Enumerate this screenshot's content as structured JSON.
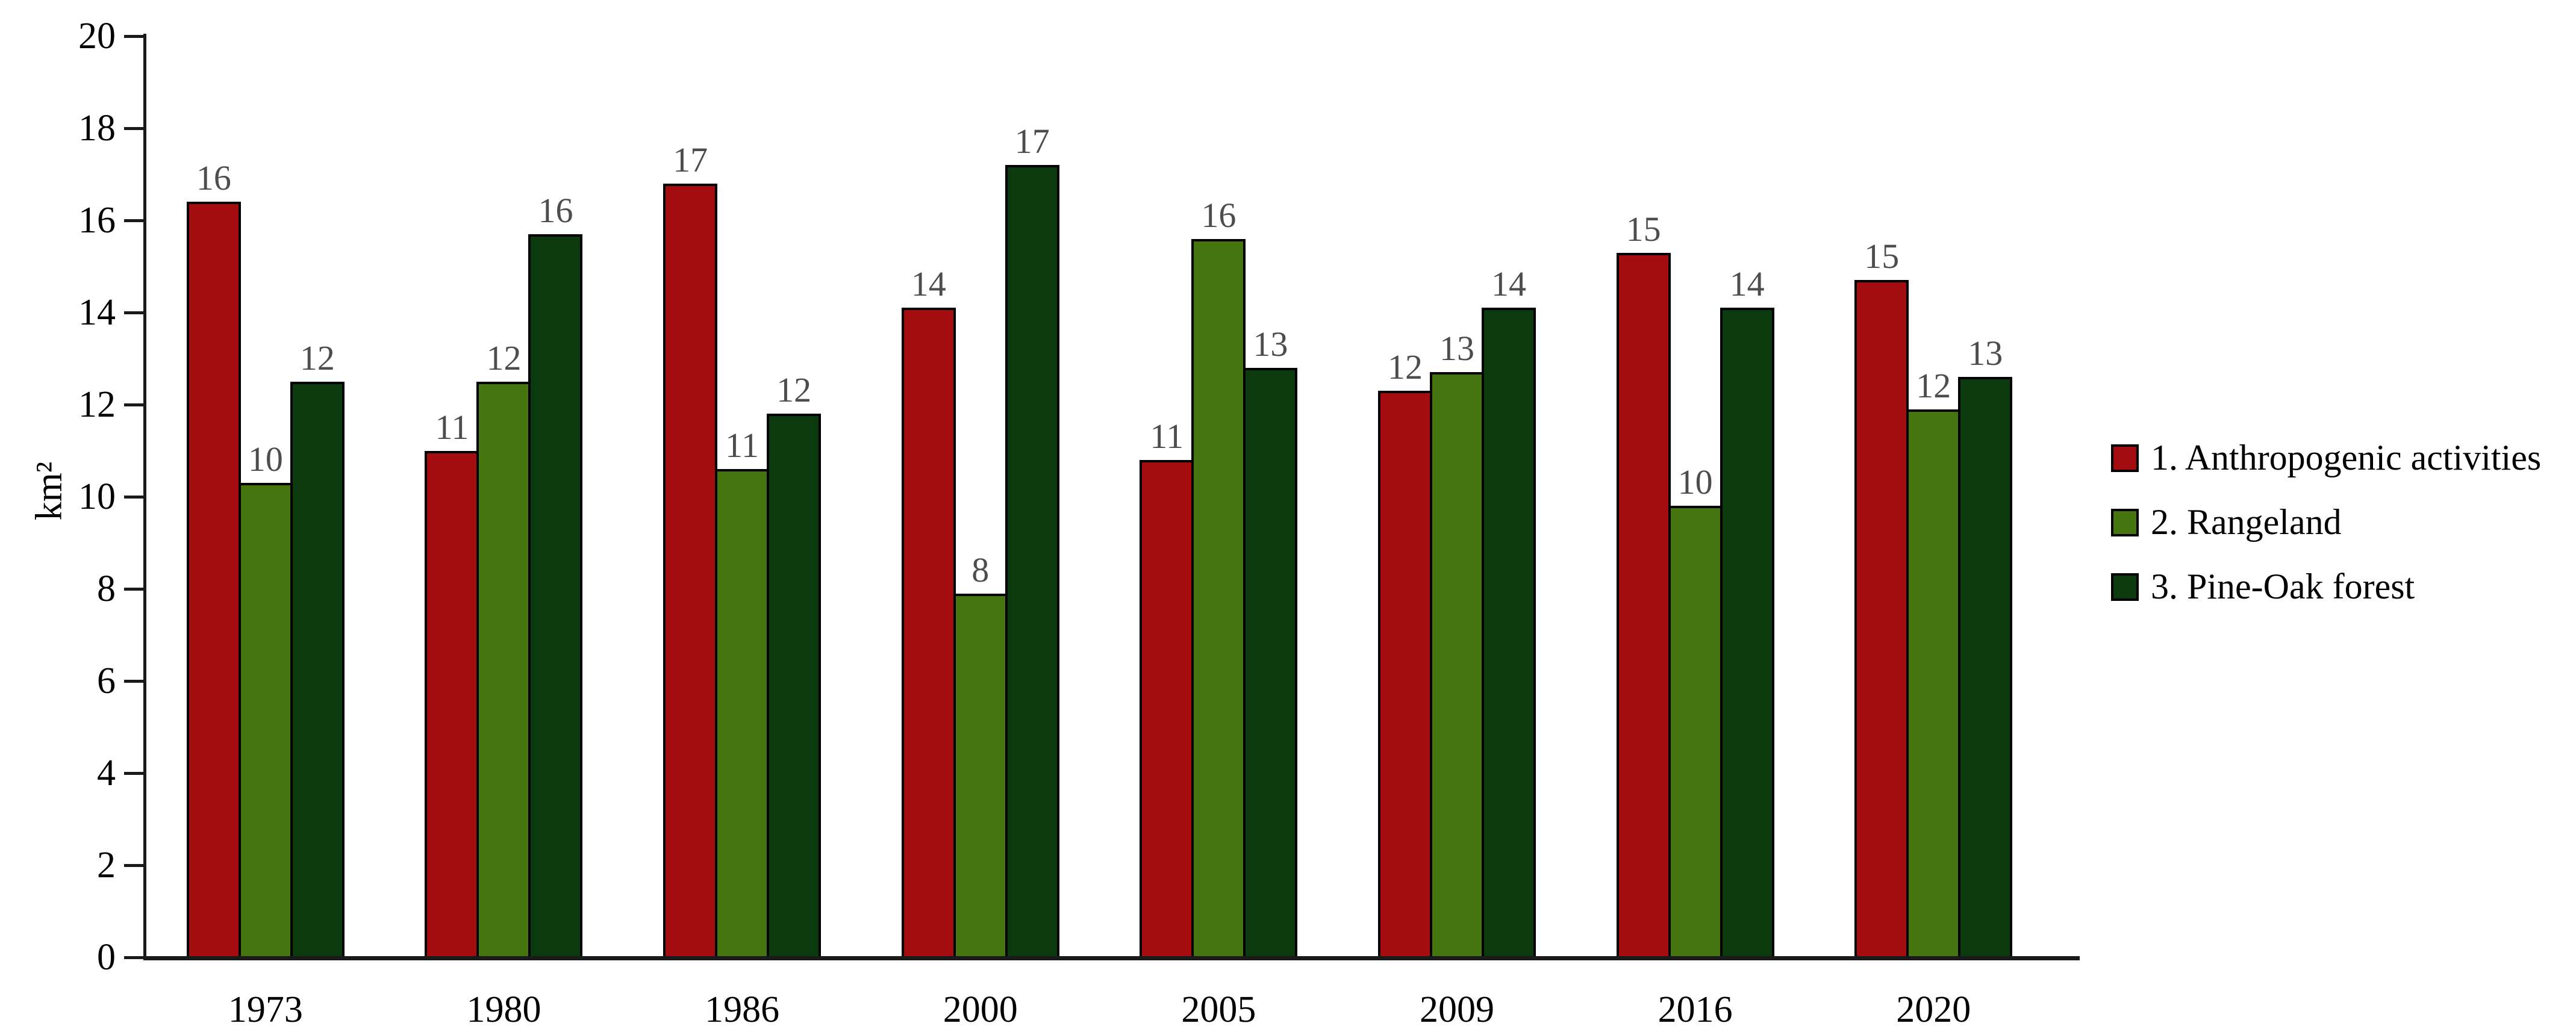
{
  "chart_data": {
    "type": "bar",
    "title": "",
    "ylabel": "km²",
    "xlabel": "",
    "categories": [
      "1973",
      "1980",
      "1986",
      "2000",
      "2005",
      "2009",
      "2016",
      "2020"
    ],
    "series": [
      {
        "name": "1. Anthropogenic activities",
        "color": "#A40D10",
        "values": [
          16.4,
          11.0,
          16.8,
          14.1,
          10.8,
          12.3,
          15.3,
          14.7
        ],
        "data_labels": [
          "16",
          "11",
          "17",
          "14",
          "11",
          "12",
          "15",
          "15"
        ]
      },
      {
        "name": "2. Rangeland",
        "color": "#45750F",
        "values": [
          10.3,
          12.5,
          10.6,
          7.9,
          15.6,
          12.7,
          9.8,
          11.9
        ],
        "data_labels": [
          "10",
          "12",
          "11",
          "8",
          "16",
          "13",
          "10",
          "12"
        ]
      },
      {
        "name": "3. Pine-Oak forest",
        "color": "#0A3A0E",
        "values": [
          12.5,
          15.7,
          11.8,
          17.2,
          12.8,
          14.1,
          14.1,
          12.6
        ],
        "data_labels": [
          "12",
          "16",
          "12",
          "17",
          "13",
          "14",
          "14",
          "13"
        ]
      }
    ],
    "ylim": [
      0,
      20
    ],
    "ytick_step": 2,
    "yticks": [
      0,
      2,
      4,
      6,
      8,
      10,
      12,
      14,
      16,
      18,
      20
    ],
    "grid": false,
    "legend_position": "right",
    "bar_border_color": "#000000",
    "data_label_color": "#4d4d4d",
    "axis_color": "#1a1a1a",
    "background_color": "#ffffff"
  }
}
